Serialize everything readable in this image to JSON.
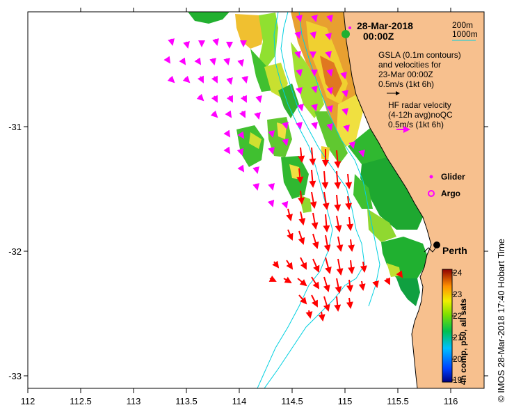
{
  "map": {
    "date": "28-Mar-2018",
    "time": "00:00Z",
    "x_ticks": [
      "112",
      "112.5",
      "113",
      "113.5",
      "114",
      "114.5",
      "115",
      "115.5",
      "116"
    ],
    "y_ticks": [
      "-31",
      "-32",
      "-33"
    ],
    "city": "Perth",
    "legend": {
      "contour_200": "200m",
      "contour_1000": "1000m",
      "gsla_line1": "GSLA (0.1m contours)",
      "gsla_line2": "and velocities for",
      "gsla_line3": "23-Mar 00:00Z",
      "gsla_scale": "0.5m/s (1kt 6h)",
      "hf_line1": "HF radar velocity",
      "hf_line2": "(4-12h avg)noQC",
      "hf_scale": "0.5m/s (1kt 6h)",
      "glider": "Glider",
      "argo": "Argo"
    },
    "colorbar": {
      "title": "4h comp, p50, all sats",
      "ticks": [
        "24",
        "23",
        "22",
        "21",
        "20",
        "19"
      ],
      "min": 19,
      "max": 24
    },
    "credit": "© IMOS 28-Mar-2018 17:40 Hobart Time",
    "colors": {
      "land": "#f7c08e",
      "hf_vectors": "#ff00ff",
      "strong_vectors": "#ff0000",
      "contours": "#00d0e0"
    }
  }
}
